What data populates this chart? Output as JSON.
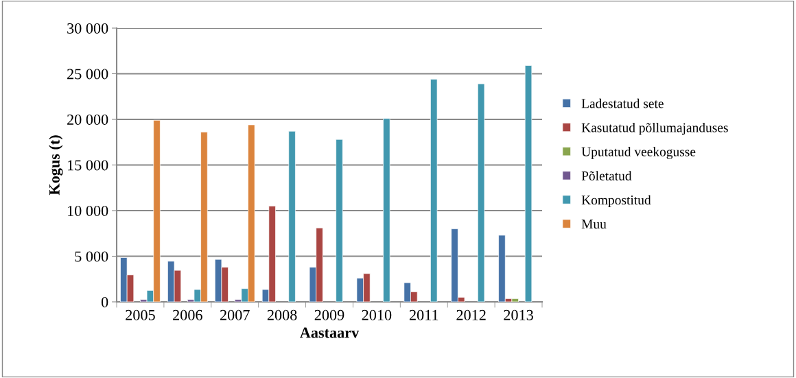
{
  "chart_data": {
    "type": "bar",
    "xlabel": "Aastaarv",
    "ylabel": "Kogus (t)",
    "categories": [
      "2005",
      "2006",
      "2007",
      "2008",
      "2009",
      "2010",
      "2011",
      "2012",
      "2013"
    ],
    "series": [
      {
        "name": "Ladestatud sete",
        "color": "#4572a7",
        "values": [
          4850,
          4450,
          4650,
          1350,
          3800,
          2600,
          2100,
          8000,
          7300
        ]
      },
      {
        "name": "Kasutatud põllumajanduses",
        "color": "#aa4643",
        "values": [
          2950,
          3450,
          3800,
          10500,
          8100,
          3100,
          1100,
          500,
          350
        ]
      },
      {
        "name": "Uputatud veekogusse",
        "color": "#89a54e",
        "values": [
          null,
          null,
          null,
          null,
          null,
          null,
          null,
          null,
          350
        ]
      },
      {
        "name": "Põletatud",
        "color": "#71588f",
        "values": [
          250,
          250,
          250,
          null,
          null,
          null,
          null,
          null,
          null
        ]
      },
      {
        "name": "Kompostitud",
        "color": "#4198af",
        "values": [
          1250,
          1350,
          1450,
          18700,
          17800,
          20100,
          24400,
          23900,
          25900
        ]
      },
      {
        "name": "Muu",
        "color": "#db843d",
        "values": [
          19900,
          18600,
          19400,
          null,
          null,
          null,
          null,
          null,
          null
        ]
      }
    ],
    "ylim": [
      0,
      30000
    ],
    "yticks": [
      {
        "value": 0,
        "label": "0"
      },
      {
        "value": 5000,
        "label": "5 000"
      },
      {
        "value": 10000,
        "label": "10 000"
      },
      {
        "value": 15000,
        "label": "15 000"
      },
      {
        "value": 20000,
        "label": "20 000"
      },
      {
        "value": 25000,
        "label": "25 000"
      },
      {
        "value": 30000,
        "label": "30 000"
      }
    ],
    "grid": "y",
    "legend": "right"
  }
}
